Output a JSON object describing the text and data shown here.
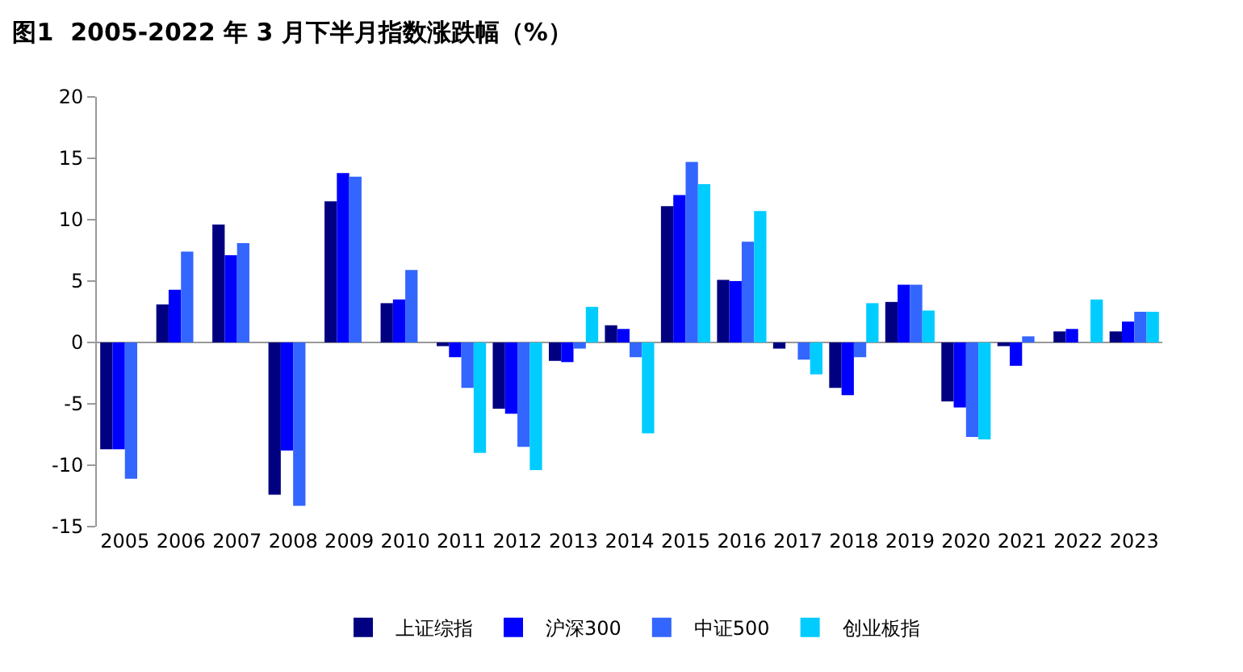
{
  "chart_data": {
    "type": "bar",
    "title": "图1  2005-2022 年 3 月下半月指数涨跌幅（%）",
    "categories": [
      "2005",
      "2006",
      "2007",
      "2008",
      "2009",
      "2010",
      "2011",
      "2012",
      "2013",
      "2014",
      "2015",
      "2016",
      "2017",
      "2018",
      "2019",
      "2020",
      "2021",
      "2022",
      "2023"
    ],
    "series": [
      {
        "name": "上证综指",
        "color": "#000080",
        "values": [
          -8.7,
          3.1,
          9.6,
          -12.4,
          11.5,
          3.2,
          -0.3,
          -5.4,
          -1.5,
          1.4,
          11.1,
          5.1,
          -0.5,
          -3.7,
          3.3,
          -4.8,
          -0.3,
          0.9,
          0.9
        ]
      },
      {
        "name": "沪深300",
        "color": "#0000ff",
        "values": [
          -8.7,
          4.3,
          7.1,
          -8.8,
          13.8,
          3.5,
          -1.2,
          -5.8,
          -1.6,
          1.1,
          12.0,
          5.0,
          null,
          -4.3,
          4.7,
          -5.3,
          -1.9,
          1.1,
          1.7
        ]
      },
      {
        "name": "中证500",
        "color": "#3366ff",
        "values": [
          -11.1,
          7.4,
          8.1,
          -13.3,
          13.5,
          5.9,
          -3.7,
          -8.5,
          -0.5,
          -1.2,
          14.7,
          8.2,
          -1.4,
          -1.2,
          4.7,
          -7.7,
          0.5,
          null,
          2.5
        ]
      },
      {
        "name": "创业板指",
        "color": "#00ccff",
        "values": [
          null,
          null,
          null,
          null,
          null,
          null,
          -9.0,
          -10.4,
          2.9,
          -7.4,
          12.9,
          10.7,
          -2.6,
          3.2,
          2.6,
          -7.9,
          null,
          3.5,
          2.5
        ]
      }
    ],
    "ylim": [
      -15,
      20
    ],
    "yticks": [
      -15,
      -10,
      -5,
      0,
      5,
      10,
      15,
      20
    ],
    "legend": "bottom"
  }
}
